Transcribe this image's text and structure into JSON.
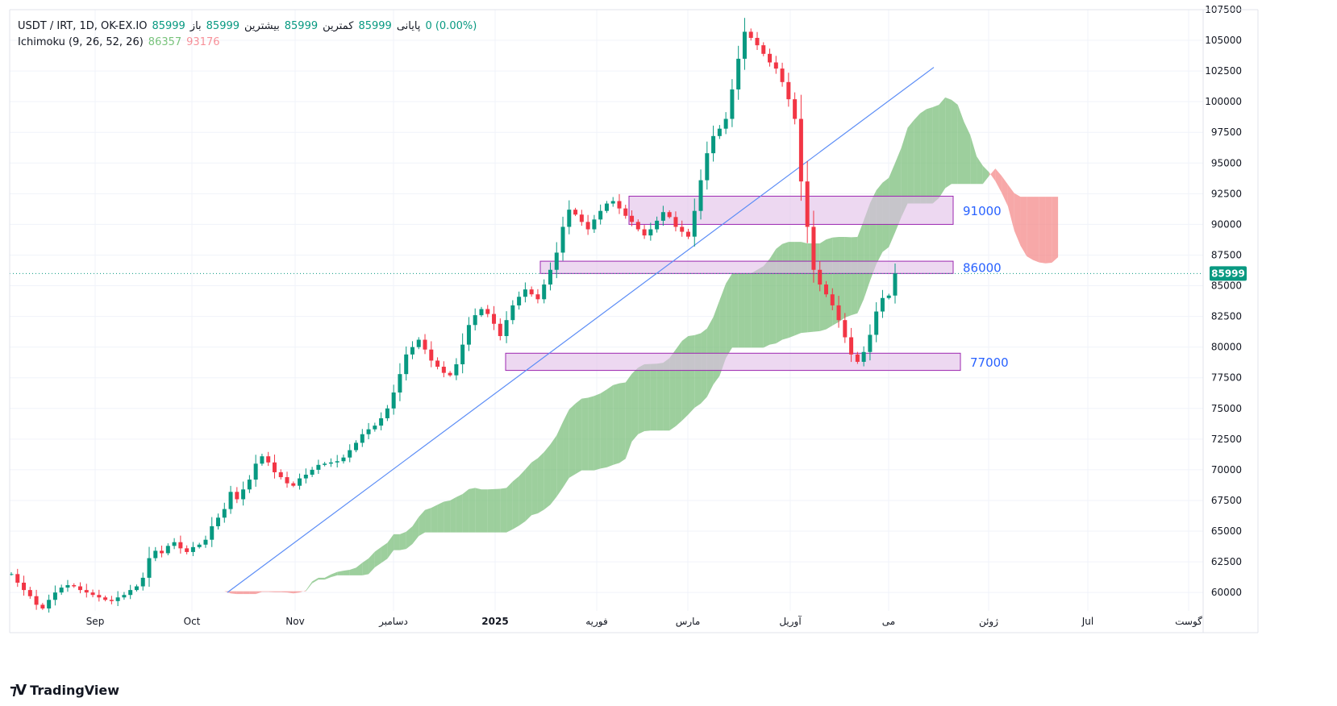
{
  "legend": {
    "symbol": "USDT / IRT, 1D, OK-EX.IO",
    "open_label": "باز",
    "open": "85999",
    "high_label": "بیشترین",
    "high": "85999",
    "low_label": "کمترین",
    "low": "85999",
    "close_label": "پایانی",
    "close": "85999",
    "change": "0 (0.00%)",
    "indicator": "Ichimoku (9, 26, 52, 26)",
    "ind_val1": "86357",
    "ind_val2": "93176"
  },
  "brand": {
    "name": "TradingView"
  },
  "colors": {
    "up": "#089981",
    "down": "#f23645",
    "cloud_bull": "#7cbf7c",
    "cloud_bear": "#f48b8b",
    "zone_fill": "#e1bee7",
    "zone_stroke": "#9c27b0",
    "trendline": "#5c8df6",
    "zone_label": "#2962ff",
    "price_tag": "#089981"
  },
  "chart_data": {
    "type": "candlestick",
    "y_axis": {
      "range": [
        58500,
        107500
      ],
      "ticks": [
        "60000",
        "62500",
        "65000",
        "67500",
        "70000",
        "72500",
        "75000",
        "77500",
        "80000",
        "82500",
        "85000",
        "87500",
        "90000",
        "92500",
        "95000",
        "97500",
        "100000",
        "102500",
        "105000",
        "107500"
      ]
    },
    "x_axis": {
      "tick_labels": [
        "Sep",
        "Oct",
        "Nov",
        "دسامبر",
        "2025",
        "فوریه",
        "مارس",
        "آوریل",
        "می",
        "ژوئن",
        "Jul",
        "گوست"
      ],
      "bold_labels": [
        "2025"
      ]
    },
    "last_price": "85999",
    "zones": [
      {
        "from": 90000,
        "to": 92300,
        "label": "91000"
      },
      {
        "from": 86000,
        "to": 87000,
        "label": "86000"
      },
      {
        "from": 78100,
        "to": 79500,
        "label": "77000"
      }
    ],
    "trendline": {
      "start": 60000,
      "end": 102800
    },
    "close_series": [
      61500,
      60800,
      60200,
      59700,
      59000,
      58700,
      59400,
      60000,
      60400,
      60600,
      60500,
      60200,
      60000,
      59800,
      59600,
      59400,
      59300,
      59600,
      59800,
      60200,
      60500,
      61200,
      62800,
      63400,
      63200,
      63800,
      64100,
      63600,
      63300,
      63700,
      63900,
      64300,
      65400,
      66100,
      66800,
      68200,
      67600,
      68400,
      69200,
      70500,
      71100,
      70600,
      69800,
      69400,
      68900,
      68700,
      69300,
      69600,
      70000,
      70400,
      70500,
      70600,
      70700,
      71000,
      71600,
      72200,
      72900,
      73300,
      73600,
      74200,
      75000,
      76300,
      77800,
      79400,
      80000,
      80600,
      79800,
      78900,
      78400,
      77900,
      77700,
      78600,
      80200,
      81800,
      82600,
      83100,
      82700,
      81900,
      80900,
      82200,
      83400,
      84100,
      84700,
      84300,
      83900,
      85100,
      86300,
      87700,
      89800,
      91200,
      90800,
      90200,
      89600,
      90400,
      91100,
      91700,
      91900,
      91300,
      90700,
      90200,
      89600,
      89100,
      89600,
      90300,
      91000,
      90600,
      89800,
      89400,
      89000,
      91100,
      93600,
      95800,
      97200,
      97800,
      98600,
      101000,
      103500,
      105700,
      105200,
      104600,
      103900,
      103200,
      102700,
      101600,
      100200,
      98600,
      93500,
      89800,
      86300,
      85100,
      84300,
      83400,
      82200,
      80800,
      79400,
      78800,
      79600,
      81000,
      82900,
      84000,
      84200,
      85999
    ]
  }
}
